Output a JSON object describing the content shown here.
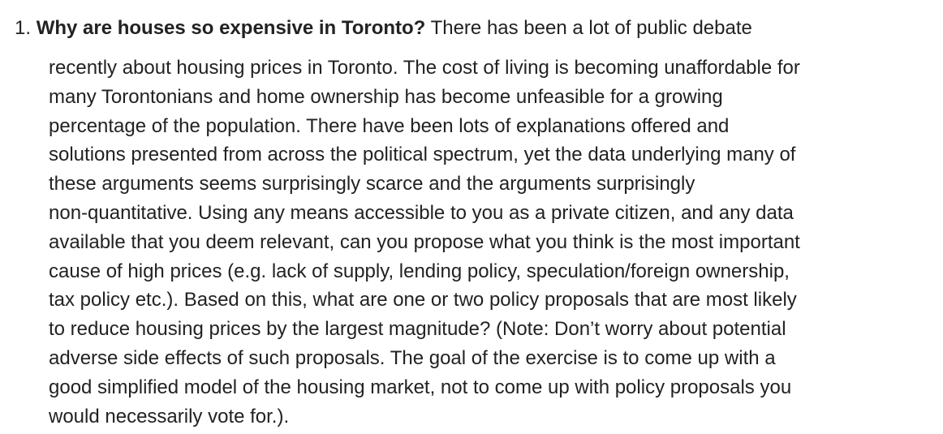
{
  "question": {
    "number": "1.",
    "title": "Why are houses so expensive in Toronto?",
    "first_line_rest": "There has been a lot of public debate",
    "lines": [
      "recently about housing prices in Toronto. The cost of living is becoming unaffordable for",
      "many Torontonians and home ownership has become unfeasible for a growing",
      "percentage of the population. There have been lots of explanations offered and",
      "solutions presented from across the political spectrum, yet the data underlying many of",
      "these arguments seems surprisingly scarce and the arguments surprisingly",
      "non-quantitative. Using any means accessible to you as a private citizen, and any data",
      "available that you deem relevant, can you propose what you think is the most important",
      "cause of high prices (e.g. lack of supply, lending policy, speculation/foreign ownership,",
      "tax policy etc.). Based on this, what are one or two policy proposals that are most likely",
      "to reduce housing prices by the largest magnitude? (Note: Don’t worry about potential",
      "adverse side effects of such proposals. The goal of the exercise is to come up with a",
      "good simplified model of the housing market, not to come up with policy proposals you",
      "would necessarily vote for.)."
    ]
  }
}
